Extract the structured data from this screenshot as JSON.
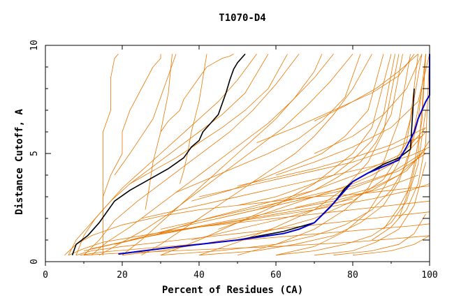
{
  "chart_data": {
    "type": "line",
    "title": "T1070-D4",
    "xlabel": "Percent of Residues (CA)",
    "ylabel": "Distance Cutoff, A",
    "xlim": [
      0,
      100
    ],
    "ylim": [
      0,
      10
    ],
    "x_ticks": [
      "0",
      "20",
      "40",
      "60",
      "80",
      "100"
    ],
    "y_ticks": [
      "0",
      "5",
      "10"
    ],
    "grid": false,
    "colors": {
      "background_curves": "#e87800",
      "highlight_black": "#000000",
      "highlight_blue": "#0000d0"
    },
    "highlight_series": [
      {
        "color": "black",
        "x": [
          7,
          8,
          11,
          14,
          16,
          18,
          22,
          27,
          32,
          36,
          38,
          40,
          41,
          43,
          45,
          46,
          47,
          48,
          49,
          50,
          52
        ],
        "y": [
          0.3,
          0.8,
          1.2,
          1.8,
          2.3,
          2.8,
          3.3,
          3.8,
          4.3,
          4.8,
          5.3,
          5.6,
          6.0,
          6.4,
          6.8,
          7.3,
          7.8,
          8.4,
          8.9,
          9.2,
          9.6
        ]
      },
      {
        "color": "black",
        "x": [
          19,
          30,
          50,
          62,
          66,
          70,
          75,
          78,
          80,
          84,
          88,
          92,
          95,
          96
        ],
        "y": [
          0.35,
          0.6,
          1.0,
          1.4,
          1.6,
          1.8,
          2.7,
          3.4,
          3.7,
          4.1,
          4.5,
          4.8,
          5.2,
          8.0
        ]
      },
      {
        "color": "blue",
        "x": [
          19,
          30,
          50,
          62,
          66,
          70,
          74,
          76,
          78,
          80,
          84,
          88,
          92,
          94,
          96,
          97,
          98,
          99,
          100,
          100
        ],
        "y": [
          0.35,
          0.6,
          1.0,
          1.3,
          1.5,
          1.8,
          2.5,
          2.9,
          3.3,
          3.7,
          4.1,
          4.4,
          4.7,
          5.3,
          6.0,
          6.6,
          7.0,
          7.4,
          7.7,
          9.6
        ]
      }
    ],
    "background_series": [
      {
        "x": [
          5,
          8,
          12,
          20,
          30,
          40,
          50,
          60,
          70,
          80,
          90,
          95,
          100
        ],
        "y": [
          0.3,
          0.8,
          1.2,
          1.7,
          2.1,
          2.4,
          2.6,
          2.8,
          3.0,
          3.1,
          3.3,
          3.4,
          3.5
        ]
      },
      {
        "x": [
          6,
          10,
          15,
          25,
          35,
          45,
          55,
          65,
          75,
          85,
          95,
          100
        ],
        "y": [
          0.3,
          0.6,
          0.9,
          1.2,
          1.5,
          1.7,
          1.9,
          2.1,
          2.3,
          2.5,
          2.7,
          2.8
        ]
      },
      {
        "x": [
          8,
          12,
          20,
          30,
          40,
          50,
          60,
          70,
          80,
          90,
          100
        ],
        "y": [
          0.3,
          0.5,
          0.7,
          0.9,
          1.1,
          1.3,
          1.5,
          1.7,
          1.9,
          2.1,
          2.3
        ]
      },
      {
        "x": [
          9,
          15,
          25,
          35,
          45,
          55,
          65,
          75,
          85,
          95,
          100
        ],
        "y": [
          0.3,
          0.45,
          0.6,
          0.75,
          0.9,
          1.05,
          1.2,
          1.35,
          1.5,
          1.65,
          1.75
        ]
      },
      {
        "x": [
          10,
          20,
          40,
          60,
          80,
          100
        ],
        "y": [
          0.3,
          0.4,
          0.55,
          0.7,
          0.9,
          1.2
        ]
      },
      {
        "x": [
          6,
          8,
          12,
          16,
          20,
          25,
          30,
          35,
          40,
          45,
          50,
          55
        ],
        "y": [
          0.3,
          1.0,
          1.8,
          2.6,
          3.4,
          4.2,
          5.0,
          5.8,
          6.6,
          7.4,
          8.4,
          9.6
        ]
      },
      {
        "x": [
          8,
          10,
          13,
          17,
          22,
          28,
          34,
          40,
          46,
          52,
          58
        ],
        "y": [
          0.3,
          1.2,
          2.0,
          2.8,
          3.6,
          4.4,
          5.2,
          6.0,
          6.8,
          7.8,
          9.6
        ]
      },
      {
        "x": [
          10,
          14,
          18,
          24,
          30,
          36,
          42,
          48,
          54,
          60,
          66
        ],
        "y": [
          0.3,
          1.0,
          1.9,
          2.8,
          3.6,
          4.4,
          5.2,
          6.0,
          7.0,
          8.2,
          9.6
        ]
      },
      {
        "x": [
          12,
          16,
          22,
          28,
          34,
          40,
          46,
          52,
          58,
          64,
          70,
          75
        ],
        "y": [
          0.3,
          0.9,
          1.6,
          2.4,
          3.2,
          4.0,
          4.8,
          5.6,
          6.4,
          7.4,
          8.5,
          9.6
        ]
      },
      {
        "x": [
          14,
          20,
          26,
          32,
          38,
          44,
          50,
          56,
          62,
          68,
          74,
          80
        ],
        "y": [
          0.3,
          0.9,
          1.5,
          2.2,
          3.0,
          3.8,
          4.6,
          5.4,
          6.2,
          7.2,
          8.3,
          9.6
        ]
      },
      {
        "x": [
          15,
          15,
          17,
          20,
          20,
          22,
          25,
          28,
          30,
          30
        ],
        "y": [
          0.3,
          3.0,
          4.0,
          5.0,
          6.0,
          7.0,
          8.0,
          9.0,
          9.4,
          9.6
        ]
      },
      {
        "x": [
          15,
          15,
          17,
          17,
          18,
          19
        ],
        "y": [
          2.0,
          6.0,
          7.0,
          8.5,
          9.4,
          9.6
        ]
      },
      {
        "x": [
          30,
          32,
          35,
          36,
          38,
          40,
          42,
          44,
          46,
          48,
          49
        ],
        "y": [
          6.0,
          6.5,
          7.0,
          7.5,
          8.0,
          8.5,
          9.0,
          9.2,
          9.4,
          9.5,
          9.6
        ]
      },
      {
        "x": [
          20,
          25,
          30,
          35,
          40,
          45,
          50,
          55,
          60,
          65,
          70,
          72
        ],
        "y": [
          0.3,
          1.0,
          1.8,
          2.6,
          3.4,
          4.2,
          5.0,
          5.8,
          6.6,
          7.6,
          8.8,
          9.6
        ]
      },
      {
        "x": [
          25,
          30,
          35,
          40,
          45,
          50,
          55,
          60,
          65,
          70,
          75,
          80,
          85
        ],
        "y": [
          0.3,
          0.8,
          1.4,
          2.0,
          2.6,
          3.2,
          3.8,
          4.4,
          5.0,
          5.8,
          6.8,
          8.0,
          9.6
        ]
      },
      {
        "x": [
          30,
          40,
          50,
          60,
          70,
          80,
          85,
          90
        ],
        "y": [
          0.3,
          1.0,
          1.8,
          2.6,
          3.6,
          5.0,
          6.2,
          9.6
        ]
      },
      {
        "x": [
          40,
          50,
          60,
          70,
          78,
          84,
          88,
          92
        ],
        "y": [
          0.3,
          0.9,
          1.6,
          2.4,
          3.4,
          4.6,
          6.0,
          9.6
        ]
      },
      {
        "x": [
          50,
          60,
          70,
          78,
          84,
          88,
          92,
          95
        ],
        "y": [
          0.3,
          0.8,
          1.5,
          2.4,
          3.4,
          4.6,
          6.5,
          9.6
        ]
      },
      {
        "x": [
          60,
          70,
          78,
          84,
          88,
          92,
          95,
          97
        ],
        "y": [
          0.3,
          0.7,
          1.4,
          2.3,
          3.4,
          4.6,
          6.6,
          9.6
        ]
      },
      {
        "x": [
          20,
          30,
          40,
          50,
          60,
          70,
          80,
          88,
          94,
          98
        ],
        "y": [
          0.3,
          0.5,
          0.8,
          1.1,
          1.5,
          2.0,
          2.8,
          3.8,
          5.5,
          9.6
        ]
      },
      {
        "x": [
          30,
          45,
          60,
          70,
          78,
          85,
          90,
          94,
          97,
          99
        ],
        "y": [
          0.3,
          0.5,
          0.8,
          1.2,
          1.7,
          2.4,
          3.3,
          4.5,
          6.5,
          9.6
        ]
      },
      {
        "x": [
          40,
          55,
          65,
          75,
          82,
          88,
          92,
          95,
          98
        ],
        "y": [
          0.3,
          0.5,
          0.8,
          1.2,
          1.8,
          2.6,
          3.7,
          5.2,
          8.0
        ]
      },
      {
        "x": [
          60,
          70,
          78,
          85,
          90,
          94,
          97,
          99
        ],
        "y": [
          0.3,
          0.5,
          0.8,
          1.2,
          1.8,
          2.8,
          4.5,
          7.0
        ]
      },
      {
        "x": [
          70,
          80,
          86,
          92,
          96,
          99
        ],
        "y": [
          0.3,
          0.5,
          0.9,
          1.5,
          2.6,
          4.6
        ]
      },
      {
        "x": [
          75,
          85,
          92,
          96,
          99
        ],
        "y": [
          0.3,
          0.5,
          0.8,
          1.3,
          2.2
        ]
      },
      {
        "x": [
          80,
          90,
          96,
          100
        ],
        "y": [
          0.3,
          0.5,
          0.8,
          1.2
        ]
      },
      {
        "x": [
          45,
          55,
          62,
          70,
          76,
          82,
          86,
          90,
          93
        ],
        "y": [
          2.0,
          2.4,
          2.8,
          3.3,
          3.9,
          4.6,
          5.5,
          6.8,
          9.6
        ]
      },
      {
        "x": [
          50,
          60,
          68,
          75,
          80,
          85,
          88,
          91
        ],
        "y": [
          2.6,
          3.0,
          3.5,
          4.0,
          4.7,
          5.6,
          6.8,
          9.6
        ]
      },
      {
        "x": [
          38,
          48,
          56,
          64,
          72,
          78,
          84,
          88
        ],
        "y": [
          2.8,
          3.3,
          3.8,
          4.4,
          5.0,
          5.8,
          7.0,
          9.6
        ]
      },
      {
        "x": [
          34,
          42,
          50,
          58,
          66,
          72,
          78,
          82
        ],
        "y": [
          3.2,
          3.8,
          4.4,
          5.0,
          5.7,
          6.5,
          7.6,
          9.6
        ]
      },
      {
        "x": [
          22,
          28,
          34,
          40,
          46,
          52,
          58,
          63
        ],
        "y": [
          3.6,
          4.2,
          4.8,
          5.5,
          6.2,
          7.0,
          8.0,
          9.6
        ]
      },
      {
        "x": [
          18,
          20,
          22,
          25,
          28,
          30,
          32,
          34
        ],
        "y": [
          4.0,
          4.5,
          5.0,
          5.8,
          6.6,
          7.6,
          8.6,
          9.6
        ]
      },
      {
        "x": [
          45,
          50,
          55,
          60,
          65,
          70,
          75,
          80,
          85,
          90,
          95,
          99
        ],
        "y": [
          1.5,
          1.8,
          2.1,
          2.4,
          2.7,
          3.0,
          3.3,
          3.6,
          4.0,
          4.5,
          5.2,
          6.0
        ]
      },
      {
        "x": [
          30,
          40,
          50,
          60,
          70,
          80,
          90,
          98
        ],
        "y": [
          1.5,
          1.9,
          2.3,
          2.7,
          3.1,
          3.5,
          4.1,
          5.0
        ]
      },
      {
        "x": [
          25,
          35,
          45,
          55,
          65,
          75,
          85,
          95,
          100
        ],
        "y": [
          2.0,
          2.4,
          2.8,
          3.2,
          3.6,
          4.0,
          4.4,
          4.9,
          5.3
        ]
      },
      {
        "x": [
          40,
          50,
          60,
          70,
          80,
          90,
          98
        ],
        "y": [
          3.0,
          3.4,
          3.8,
          4.2,
          4.6,
          5.2,
          5.8
        ]
      },
      {
        "x": [
          60,
          70,
          80,
          90,
          97,
          100
        ],
        "y": [
          4.0,
          4.6,
          5.3,
          6.2,
          7.4,
          9.6
        ]
      },
      {
        "x": [
          70,
          80,
          88,
          94,
          98
        ],
        "y": [
          5.0,
          5.8,
          6.8,
          8.0,
          9.6
        ]
      },
      {
        "x": [
          55,
          65,
          75,
          85,
          92,
          96
        ],
        "y": [
          5.5,
          6.2,
          7.0,
          7.8,
          8.6,
          9.6
        ]
      },
      {
        "x": [
          70,
          78,
          86,
          92,
          97
        ],
        "y": [
          6.5,
          7.2,
          8.0,
          8.8,
          9.6
        ]
      },
      {
        "x": [
          50,
          60,
          70,
          80,
          90,
          99
        ],
        "y": [
          3.5,
          3.9,
          4.3,
          4.8,
          5.4,
          6.2
        ]
      },
      {
        "x": [
          65,
          75,
          85,
          92,
          97,
          100
        ],
        "y": [
          2.5,
          2.9,
          3.4,
          4.0,
          4.8,
          5.6
        ]
      },
      {
        "x": [
          85,
          90,
          94,
          97,
          99,
          100
        ],
        "y": [
          1.0,
          1.6,
          2.4,
          3.6,
          5.5,
          9.6
        ]
      },
      {
        "x": [
          88,
          92,
          95,
          97,
          98,
          99
        ],
        "y": [
          1.5,
          2.5,
          3.5,
          5.0,
          7.0,
          9.6
        ]
      },
      {
        "x": [
          92,
          94,
          96,
          98,
          99
        ],
        "y": [
          2.0,
          3.0,
          4.5,
          6.5,
          9.6
        ]
      },
      {
        "x": [
          35,
          36,
          37,
          38,
          40,
          42
        ],
        "y": [
          3.6,
          4.2,
          5.0,
          6.0,
          7.4,
          9.6
        ]
      },
      {
        "x": [
          26,
          27,
          28,
          30,
          32,
          33
        ],
        "y": [
          2.4,
          3.4,
          4.6,
          6.0,
          7.8,
          9.6
        ]
      },
      {
        "x": [
          10,
          20,
          30,
          40,
          50,
          60,
          70,
          80
        ],
        "y": [
          0.5,
          0.9,
          1.3,
          1.6,
          1.9,
          2.2,
          2.5,
          2.9
        ]
      },
      {
        "x": [
          12,
          25,
          40,
          55,
          70,
          85,
          95,
          100
        ],
        "y": [
          0.6,
          1.1,
          1.6,
          2.0,
          2.4,
          2.9,
          3.3,
          3.6
        ]
      },
      {
        "x": [
          18,
          30,
          45,
          60,
          75,
          88,
          97
        ],
        "y": [
          0.8,
          1.3,
          1.8,
          2.3,
          2.8,
          3.4,
          4.0
        ]
      },
      {
        "x": [
          22,
          35,
          50,
          65,
          80,
          92,
          99
        ],
        "y": [
          1.0,
          1.6,
          2.2,
          2.8,
          3.4,
          4.2,
          5.0
        ]
      },
      {
        "x": [
          28,
          40,
          55,
          70,
          82,
          93,
          99
        ],
        "y": [
          1.2,
          1.9,
          2.6,
          3.3,
          4.1,
          5.0,
          6.2
        ]
      },
      {
        "x": [
          38,
          50,
          62,
          74,
          85,
          94,
          99
        ],
        "y": [
          1.0,
          1.5,
          2.0,
          2.6,
          3.3,
          4.2,
          5.2
        ]
      }
    ]
  }
}
